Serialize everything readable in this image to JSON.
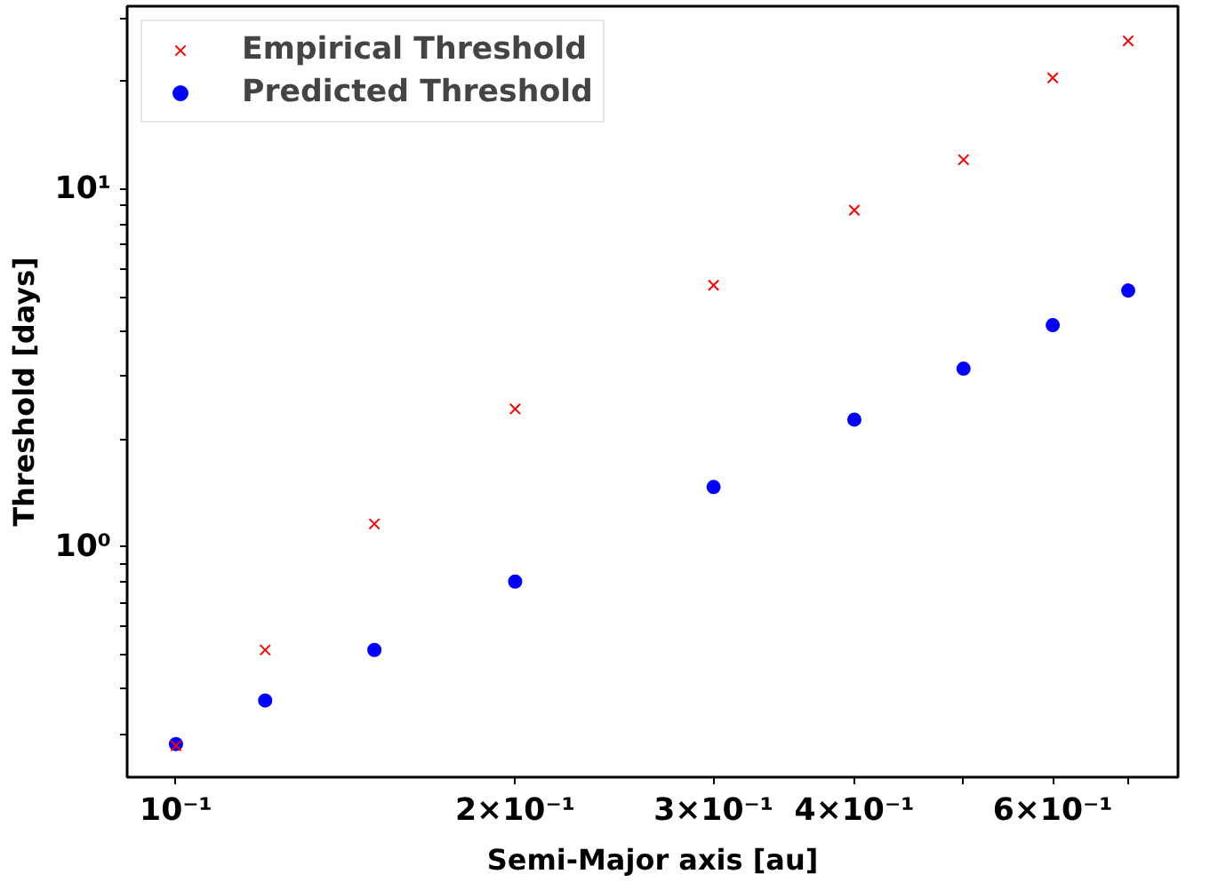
{
  "chart_data": {
    "type": "scatter",
    "xlabel": "Semi-Major axis [au]",
    "ylabel": "Threshold [days]",
    "log": "xy",
    "x": [
      0.1,
      0.12,
      0.15,
      0.2,
      0.3,
      0.4,
      0.5,
      0.6,
      0.7
    ],
    "series": [
      {
        "name": "Empirical Threshold",
        "color": "#ff0000",
        "marker": "cross",
        "values": [
          0.278,
          0.515,
          1.16,
          2.43,
          5.39,
          8.74,
          12.1,
          20.5,
          26.0
        ]
      },
      {
        "name": "Predicted Threshold",
        "color": "#0000ff",
        "marker": "circle",
        "values": [
          0.281,
          0.372,
          0.515,
          0.8,
          1.47,
          2.27,
          3.15,
          4.17,
          5.21
        ]
      }
    ],
    "xlim": [
      0.0905,
      0.775
    ],
    "ylim": [
      0.227,
      32.5
    ],
    "xticks": [
      {
        "value": 0.1,
        "label": "10⁻¹"
      },
      {
        "value": 0.2,
        "label": "2×10⁻¹"
      },
      {
        "value": 0.3,
        "label": "3×10⁻¹"
      },
      {
        "value": 0.4,
        "label": "4×10⁻¹"
      },
      {
        "value": 0.5,
        "label": null
      },
      {
        "value": 0.6,
        "label": "6×10⁻¹"
      },
      {
        "value": 0.7,
        "label": null
      }
    ],
    "yticks": [
      {
        "value": 0.3,
        "label": null
      },
      {
        "value": 0.4,
        "label": null
      },
      {
        "value": 0.5,
        "label": null
      },
      {
        "value": 0.6,
        "label": null
      },
      {
        "value": 0.7,
        "label": null
      },
      {
        "value": 0.8,
        "label": null
      },
      {
        "value": 0.9,
        "label": null
      },
      {
        "value": 1,
        "label": "10⁰"
      },
      {
        "value": 2,
        "label": null
      },
      {
        "value": 3,
        "label": null
      },
      {
        "value": 4,
        "label": null
      },
      {
        "value": 5,
        "label": null
      },
      {
        "value": 6,
        "label": null
      },
      {
        "value": 7,
        "label": null
      },
      {
        "value": 8,
        "label": null
      },
      {
        "value": 9,
        "label": null
      },
      {
        "value": 10,
        "label": "10¹"
      },
      {
        "value": 20,
        "label": null
      },
      {
        "value": 30,
        "label": null
      }
    ],
    "grid": false,
    "legend": "top left"
  }
}
